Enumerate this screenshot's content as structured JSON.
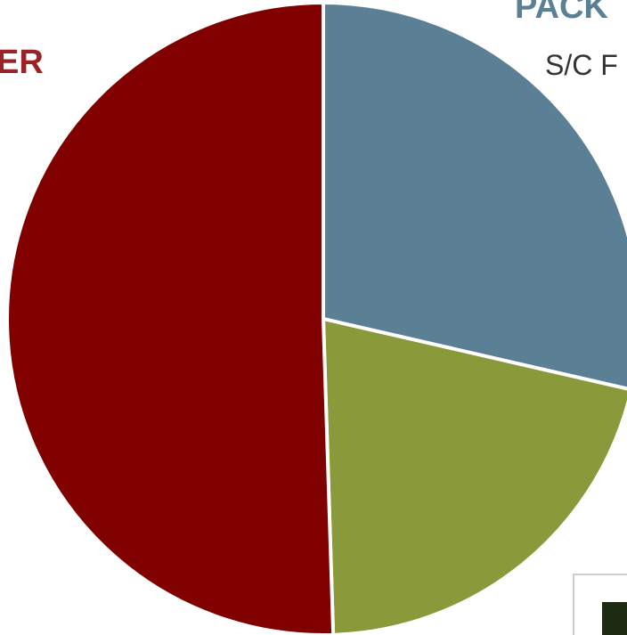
{
  "chart_data": {
    "type": "pie",
    "categories": [
      null,
      null,
      null
    ],
    "values": [
      28.6,
      20.9,
      50.5
    ],
    "colors": [
      "#5b7f95",
      "#8a9a3a",
      "#800000"
    ],
    "annotations": [
      "ER",
      "PACK",
      "S/C F"
    ]
  }
}
